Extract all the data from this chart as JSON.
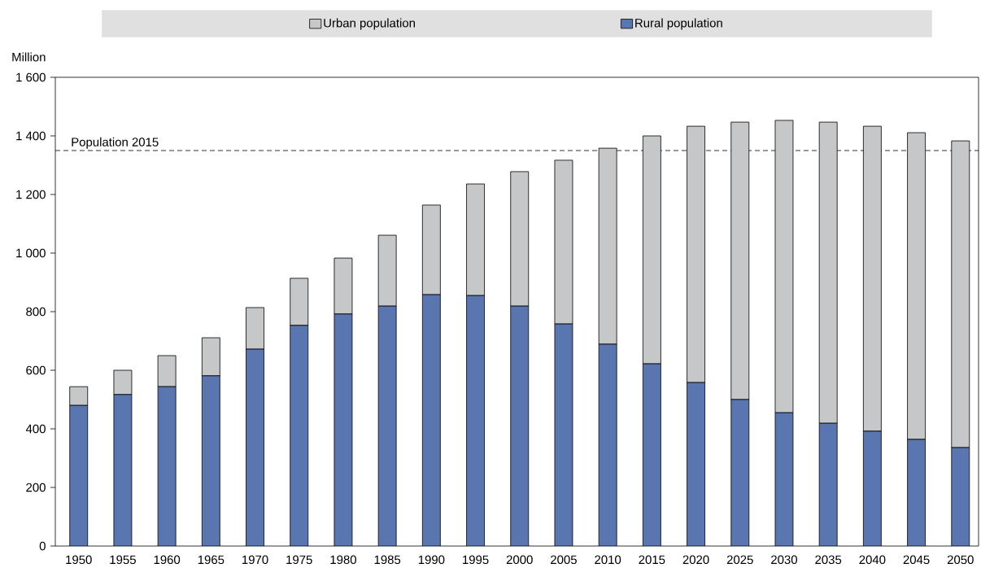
{
  "chart_data": {
    "type": "bar",
    "stacked": true,
    "ylabel": "Million",
    "legend": "top",
    "categories": [
      "1950",
      "1955",
      "1960",
      "1965",
      "1970",
      "1975",
      "1980",
      "1985",
      "1990",
      "1995",
      "2000",
      "2005",
      "2010",
      "2015",
      "2020",
      "2025",
      "2030",
      "2035",
      "2040",
      "2045",
      "2050"
    ],
    "series": [
      {
        "name": "Rural population",
        "color": "#5a76b0",
        "values": [
          480,
          517,
          544,
          581,
          672,
          753,
          792,
          819,
          858,
          855,
          819,
          758,
          689,
          622,
          558,
          500,
          455,
          419,
          392,
          364,
          336
        ]
      },
      {
        "name": "Urban population",
        "color": "#c6c7c9",
        "values": [
          64,
          83,
          106,
          130,
          142,
          161,
          191,
          242,
          306,
          381,
          459,
          559,
          669,
          778,
          875,
          947,
          998,
          1028,
          1041,
          1047,
          1047
        ]
      }
    ],
    "ylim": [
      0,
      1600
    ],
    "yticks": [
      0,
      200,
      400,
      600,
      800,
      {
        "value": 1000,
        "label": "1 000"
      },
      {
        "value": 1200,
        "label": "1 200"
      },
      {
        "value": 1400,
        "label": "1 400"
      },
      {
        "value": 1600,
        "label": "1 600"
      }
    ],
    "ref_lines": [
      {
        "axis": "y",
        "value": 1350,
        "label": "Population 2015",
        "line_style": "dashed"
      }
    ]
  }
}
